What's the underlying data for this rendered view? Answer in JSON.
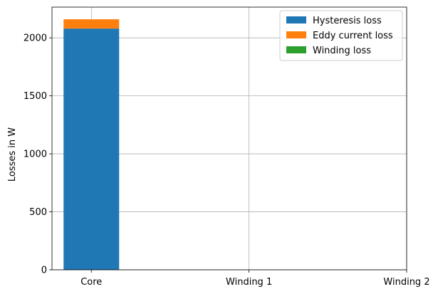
{
  "chart_data": {
    "type": "bar",
    "stacked": true,
    "categories": [
      "Core",
      "Winding 1",
      "Winding 2"
    ],
    "series": [
      {
        "name": "Hysteresis loss",
        "values": [
          2080,
          0,
          0
        ],
        "color": "#1f77b4"
      },
      {
        "name": "Eddy current loss",
        "values": [
          80,
          0,
          0
        ],
        "color": "#ff7f0e"
      },
      {
        "name": "Winding loss",
        "values": [
          0,
          0,
          0
        ],
        "color": "#2ca02c"
      }
    ],
    "xlabel": "",
    "ylabel": "Losses in W",
    "ylim": [
      0,
      2265
    ],
    "yticks": [
      0,
      500,
      1000,
      1500,
      2000
    ],
    "grid": true,
    "legend_position": "top-right"
  }
}
